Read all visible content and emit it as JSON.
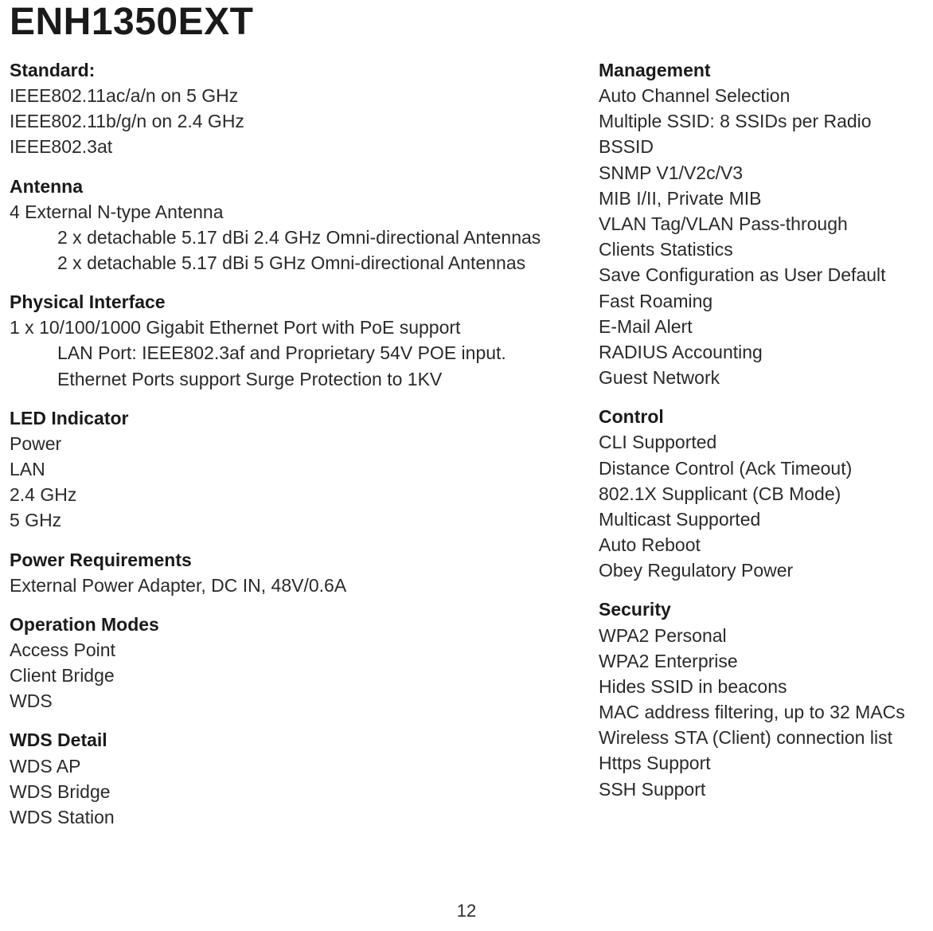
{
  "title": "ENH1350EXT",
  "page_number": "12",
  "colors": {
    "background": "#ffffff",
    "text": "#2a2a2a",
    "heading": "#1a1a1a"
  },
  "left": {
    "standard": {
      "title": "Standard:",
      "lines": [
        "IEEE802.11ac/a/n on 5 GHz",
        "IEEE802.11b/g/n on 2.4 GHz",
        "IEEE802.3at"
      ]
    },
    "antenna": {
      "title": "Antenna",
      "line": "4 External N-type Antenna",
      "sub": [
        "2 x detachable 5.17 dBi 2.4 GHz Omni-directional Antennas",
        "2 x detachable 5.17 dBi 5 GHz Omni-directional Antennas"
      ]
    },
    "physical_interface": {
      "title": "Physical Interface",
      "line": "1 x 10/100/1000 Gigabit Ethernet Port with PoE support",
      "sub": [
        "LAN Port: IEEE802.3af and Proprietary 54V POE  input.",
        "Ethernet Ports support Surge Protection to 1KV"
      ]
    },
    "led": {
      "title": "LED Indicator",
      "lines": [
        "Power",
        "LAN",
        "2.4 GHz",
        "5 GHz"
      ]
    },
    "power": {
      "title": "Power Requirements",
      "lines": [
        "External Power Adapter, DC IN, 48V/0.6A"
      ]
    },
    "operation_modes": {
      "title": "Operation Modes",
      "lines": [
        "Access Point",
        "Client Bridge",
        "WDS"
      ]
    },
    "wds_detail": {
      "title": "WDS Detail",
      "lines": [
        "WDS AP",
        "WDS Bridge",
        "WDS Station"
      ]
    }
  },
  "right": {
    "management": {
      "title": "Management",
      "lines": [
        "Auto Channel Selection",
        "Multiple SSID: 8 SSIDs per Radio",
        "BSSID",
        "SNMP V1/V2c/V3",
        "MIB I/II, Private MIB",
        "VLAN Tag/VLAN Pass-through",
        "Clients Statistics",
        "Save Configuration as User Default",
        "Fast Roaming",
        "E-Mail Alert",
        "RADIUS Accounting",
        "Guest Network"
      ]
    },
    "control": {
      "title": "Control",
      "lines": [
        "CLI Supported",
        "Distance Control (Ack Timeout)",
        "802.1X Supplicant (CB Mode)",
        "Multicast Supported",
        "Auto Reboot",
        "Obey Regulatory Power"
      ]
    },
    "security": {
      "title": "Security",
      "lines": [
        "WPA2 Personal",
        "WPA2 Enterprise",
        "Hides SSID in beacons",
        "MAC address filtering, up to 32 MACs",
        "Wireless STA (Client) connection list",
        "Https Support",
        "SSH Support"
      ]
    }
  }
}
